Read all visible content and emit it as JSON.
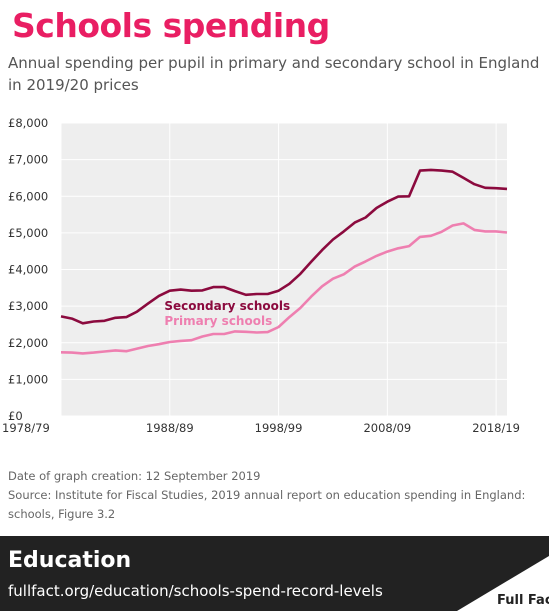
{
  "header": {
    "title": "Schools spending",
    "subtitle": "Annual spending per pupil in primary and secondary school in England in 2019/20 prices"
  },
  "chart_data": {
    "type": "line",
    "title": "Schools spending",
    "subtitle": "Annual spending per pupil in primary and secondary school in England in 2019/20 prices",
    "xlabel": "",
    "ylabel": "",
    "ylim": [
      0,
      8000
    ],
    "grid": true,
    "y_tick_labels": [
      "£0",
      "£1,000",
      "£2,000",
      "£3,000",
      "£4,000",
      "£5,000",
      "£6,000",
      "£7,000",
      "£8,000"
    ],
    "y_ticks": [
      0,
      1000,
      2000,
      3000,
      4000,
      5000,
      6000,
      7000,
      8000
    ],
    "x_tick_labels": [
      "1978/79",
      "1988/89",
      "1998/99",
      "2008/09",
      "2018/19"
    ],
    "x": [
      "1978/79",
      "1979/80",
      "1980/81",
      "1981/82",
      "1982/83",
      "1983/84",
      "1984/85",
      "1985/86",
      "1986/87",
      "1987/88",
      "1988/89",
      "1989/90",
      "1990/91",
      "1991/92",
      "1992/93",
      "1993/94",
      "1994/95",
      "1995/96",
      "1996/97",
      "1997/98",
      "1998/99",
      "1999/00",
      "2000/01",
      "2001/02",
      "2002/03",
      "2003/04",
      "2004/05",
      "2005/06",
      "2006/07",
      "2007/08",
      "2008/09",
      "2009/10",
      "2010/11",
      "2011/12",
      "2012/13",
      "2013/14",
      "2014/15",
      "2015/16",
      "2016/17",
      "2017/18",
      "2018/19",
      "2019/20"
    ],
    "series": [
      {
        "name": "Secondary schools",
        "color": "#8b0a3e",
        "values": [
          2720,
          2660,
          2530,
          2580,
          2600,
          2680,
          2700,
          2850,
          3070,
          3280,
          3420,
          3450,
          3420,
          3430,
          3520,
          3520,
          3410,
          3310,
          3330,
          3330,
          3420,
          3610,
          3880,
          4210,
          4530,
          4820,
          5040,
          5280,
          5420,
          5680,
          5850,
          5990,
          6000,
          6700,
          6720,
          6700,
          6670,
          6500,
          6330,
          6230,
          6220,
          6200
        ]
      },
      {
        "name": "Primary schools",
        "color": "#ee7fb0",
        "values": [
          1740,
          1730,
          1710,
          1730,
          1760,
          1790,
          1770,
          1840,
          1910,
          1960,
          2020,
          2050,
          2070,
          2170,
          2240,
          2240,
          2310,
          2300,
          2280,
          2290,
          2430,
          2700,
          2950,
          3260,
          3540,
          3750,
          3870,
          4080,
          4220,
          4370,
          4490,
          4580,
          4640,
          4890,
          4920,
          5030,
          5200,
          5260,
          5080,
          5040,
          5040,
          5010
        ]
      }
    ]
  },
  "notes": {
    "date": "Date of graph creation: 12 September 2019",
    "source": "Source: Institute for Fiscal Studies, 2019 annual report on education spending in England: schools, Figure 3.2"
  },
  "footer": {
    "section": "Education",
    "url": "fullfact.org/education/schools-spend-record-levels",
    "brand": "Full Fact"
  },
  "colors": {
    "title": "#e91e63",
    "footer_bg": "#222222",
    "plot_bg": "#eeeeee"
  }
}
